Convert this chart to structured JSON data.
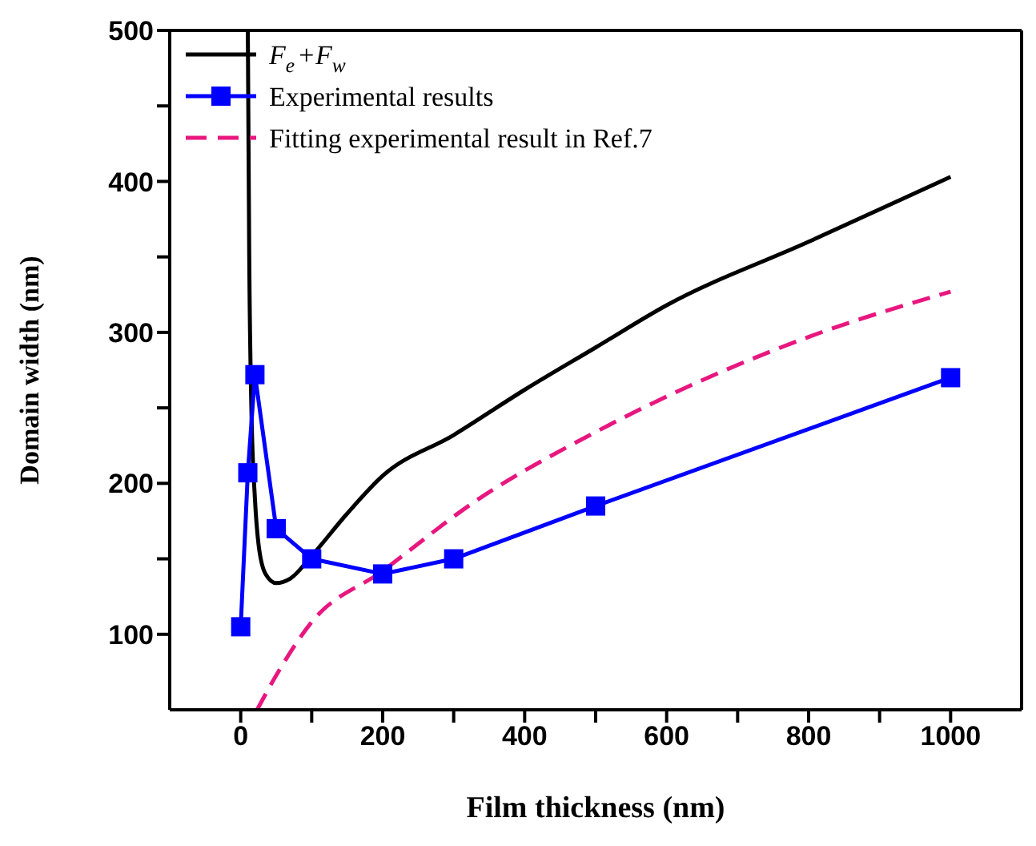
{
  "chart_data": {
    "type": "line",
    "xlabel": "Film thickness (nm)",
    "ylabel": "Domain width (nm)",
    "xlim": [
      -100,
      1100
    ],
    "xticks": [
      0,
      {
        "value": 100,
        "label": null
      },
      200,
      {
        "value": 300,
        "label": null
      },
      400,
      {
        "value": 500,
        "label": null
      },
      600,
      {
        "value": 700,
        "label": null
      },
      800,
      {
        "value": 900,
        "label": null
      },
      1000
    ],
    "ylim": [
      50,
      500
    ],
    "yticks": [
      100,
      {
        "value": 150,
        "label": null
      },
      200,
      {
        "value": 250,
        "label": null
      },
      300,
      {
        "value": 350,
        "label": null
      },
      400,
      {
        "value": 450,
        "label": null
      },
      500
    ],
    "legend": "top left",
    "series": [
      {
        "name": "F$_{e}$+F$_{w}$",
        "color": "#000000",
        "marker": "none",
        "line_style": "solid",
        "x": [
          10,
          12,
          15,
          20,
          25,
          35,
          50,
          70,
          100,
          150,
          200,
          300,
          400,
          500,
          600,
          800,
          1000
        ],
        "values": [
          500,
          350,
          250,
          190,
          160,
          140,
          134,
          137,
          152,
          180,
          205,
          232,
          262,
          290,
          318,
          360,
          403
        ]
      },
      {
        "name": "Experimental results",
        "color": "#0000ff",
        "marker": "square",
        "line_style": "solid",
        "x": [
          0,
          10,
          20,
          50,
          100,
          200,
          300,
          500,
          1000
        ],
        "values": [
          105,
          207,
          272,
          170,
          150,
          140,
          150,
          185,
          270
        ]
      },
      {
        "name": "Fitting experimental result in Ref.7",
        "color": "#e8177f",
        "marker": "none",
        "line_style": "dashed",
        "x": [
          23,
          54,
          98,
          200,
          330,
          500,
          800,
          1000
        ],
        "values": [
          50,
          76,
          107,
          142,
          188,
          234,
          297,
          327
        ]
      }
    ]
  }
}
